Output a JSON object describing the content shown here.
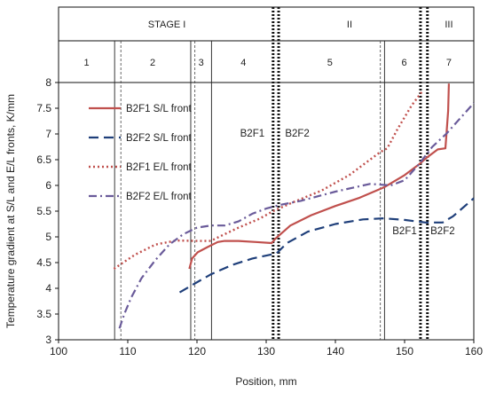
{
  "chart_data": {
    "type": "line",
    "title": "",
    "xlabel": "Position, mm",
    "ylabel": "Temperature gradient at S/L and E/L fronts, K/mm",
    "xlim": [
      100,
      160
    ],
    "ylim": [
      3,
      8
    ],
    "x_ticks": [
      "100",
      "110",
      "120",
      "130",
      "140",
      "150",
      "160"
    ],
    "y_ticks": [
      "3",
      "3.5",
      "4",
      "4.5",
      "5",
      "5.5",
      "6",
      "6.5",
      "7",
      "7.5",
      "8"
    ],
    "grid": false,
    "legend_position": "top-left",
    "stages": [
      {
        "label": "STAGE I",
        "from": 100,
        "to": 131.3
      },
      {
        "label": "II",
        "from": 131.3,
        "to": 152.8
      },
      {
        "label": "III",
        "from": 152.8,
        "to": 160
      }
    ],
    "zones": [
      {
        "label": "1",
        "from": 100,
        "to": 108.1
      },
      {
        "label": "2",
        "from": 108.1,
        "to": 119.1
      },
      {
        "label": "3",
        "from": 119.1,
        "to": 122.1
      },
      {
        "label": "4",
        "from": 122.1,
        "to": 131.3
      },
      {
        "label": "5",
        "from": 131.3,
        "to": 147.1
      },
      {
        "label": "6",
        "from": 147.1,
        "to": 152.8
      },
      {
        "label": "7",
        "from": 152.8,
        "to": 160
      }
    ],
    "boundaries": {
      "solid": [
        108.1,
        119.1,
        122.1,
        147.1
      ],
      "dashed": [
        109.0,
        119.7,
        146.5
      ],
      "dotted_pairs": [
        [
          131.0,
          131.8
        ],
        [
          152.3,
          153.3
        ]
      ]
    },
    "annotations": [
      {
        "text": "B2F1",
        "x": 128,
        "y": 6.95
      },
      {
        "text": "B2F2",
        "x": 134.5,
        "y": 6.95
      },
      {
        "text": "B2F1",
        "x": 150,
        "y": 5.05
      },
      {
        "text": "B2F2",
        "x": 155.5,
        "y": 5.05
      }
    ],
    "series": [
      {
        "name": "B2F1 S/L front",
        "color": "#c0504d",
        "dash": "solid",
        "x": [
          118.9,
          119.3,
          120.1,
          121.5,
          123.0,
          124.0,
          126.0,
          128.5,
          130.8,
          131.3,
          133.5,
          136.5,
          140.0,
          143.5,
          147.0,
          150.0,
          152.0,
          153.3,
          154.8,
          155.9,
          156.3,
          156.4
        ],
        "y": [
          4.38,
          4.58,
          4.7,
          4.8,
          4.9,
          4.92,
          4.92,
          4.9,
          4.88,
          4.96,
          5.22,
          5.42,
          5.6,
          5.76,
          5.96,
          6.2,
          6.4,
          6.55,
          6.7,
          6.72,
          7.45,
          7.98
        ]
      },
      {
        "name": "B2F2 S/L front",
        "color": "#1f3f7a",
        "dash": "long-dash",
        "x": [
          117.5,
          119.5,
          122.0,
          125.0,
          128.0,
          131.5,
          133.0,
          136.0,
          140.0,
          144.0,
          147.0,
          150.0,
          153.0,
          155.5,
          157.0,
          160.0
        ],
        "y": [
          3.92,
          4.08,
          4.27,
          4.45,
          4.58,
          4.68,
          4.88,
          5.1,
          5.25,
          5.34,
          5.36,
          5.33,
          5.28,
          5.28,
          5.4,
          5.75
        ]
      },
      {
        "name": "B2F1 E/L front",
        "color": "#c0504d",
        "dash": "dotted",
        "x": [
          108.0,
          111.0,
          114.0,
          117.0,
          120.0,
          122.0,
          123.5,
          126.0,
          129.0,
          131.0,
          134.0,
          138.0,
          142.0,
          145.0,
          146.5,
          147.5,
          149.0,
          151.0,
          152.5
        ],
        "y": [
          4.38,
          4.65,
          4.85,
          4.93,
          4.92,
          4.92,
          5.02,
          5.18,
          5.35,
          5.5,
          5.68,
          5.9,
          6.2,
          6.5,
          6.65,
          6.72,
          7.1,
          7.55,
          7.82
        ]
      },
      {
        "name": "B2F2 E/L front",
        "color": "#6a5b9a",
        "dash": "dash-dot",
        "x": [
          108.8,
          109.5,
          110.5,
          112.0,
          114.0,
          116.0,
          118.0,
          120.0,
          122.0,
          124.0,
          126.0,
          128.0,
          130.0,
          132.0,
          135.0,
          140.0,
          145.0,
          148.0,
          150.0,
          152.0,
          154.0,
          156.0,
          160.0
        ],
        "y": [
          3.22,
          3.5,
          3.82,
          4.2,
          4.55,
          4.85,
          5.05,
          5.18,
          5.22,
          5.22,
          5.3,
          5.45,
          5.55,
          5.62,
          5.7,
          5.88,
          6.03,
          6.0,
          6.1,
          6.4,
          6.75,
          7.0,
          7.6
        ]
      }
    ]
  }
}
